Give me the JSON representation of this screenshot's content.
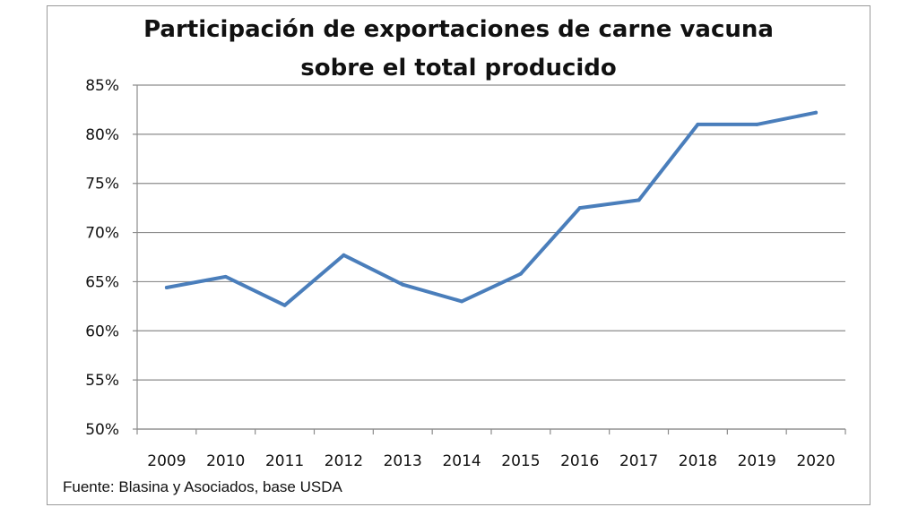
{
  "chart_data": {
    "type": "line",
    "title": "Participación de exportaciones de carne vacuna sobre el total producido",
    "title_lines": [
      "Participación de exportaciones de carne vacuna",
      "sobre el total producido"
    ],
    "categories": [
      "2009",
      "2010",
      "2011",
      "2012",
      "2013",
      "2014",
      "2015",
      "2016",
      "2017",
      "2018",
      "2019",
      "2020"
    ],
    "series": [
      {
        "values": [
          64.4,
          65.5,
          62.6,
          67.7,
          64.7,
          63.0,
          65.8,
          72.5,
          73.3,
          81.0,
          81.0,
          82.2
        ]
      }
    ],
    "ylim": [
      50,
      85
    ],
    "yticks": [
      50,
      55,
      60,
      65,
      70,
      75,
      80,
      85
    ],
    "ytick_labels": [
      "50%",
      "55%",
      "60%",
      "65%",
      "70%",
      "75%",
      "80%",
      "85%"
    ],
    "xlabel": "",
    "ylabel": "",
    "grid": "horizontal",
    "legend": "none",
    "line_color": "#4a7ebb",
    "source": "Fuente: Blasina y Asociados, base USDA"
  }
}
